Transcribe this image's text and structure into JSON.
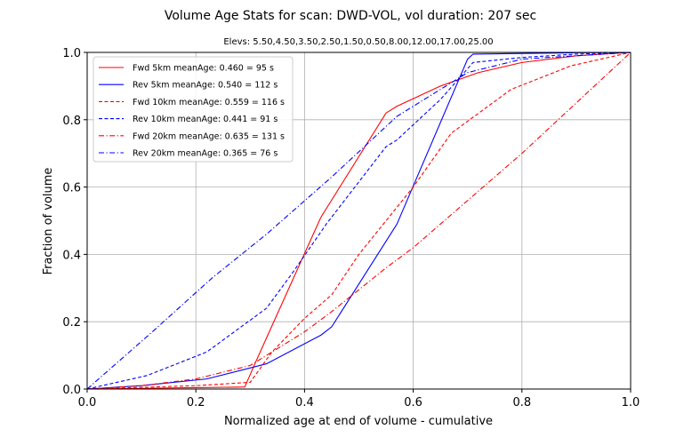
{
  "chart_data": {
    "type": "line",
    "title": "Volume Age Stats for scan: DWD-VOL, vol duration: 207 sec",
    "subtitle": "Elevs: 5.50,4.50,3.50,2.50,1.50,0.50,8.00,12.00,17.00,25.00",
    "xlabel": "Normalized age at end of volume - cumulative",
    "ylabel": "Fraction of volume",
    "xlim": [
      0.0,
      1.0
    ],
    "ylim": [
      0.0,
      1.0
    ],
    "xticks": [
      "0.0",
      "0.2",
      "0.4",
      "0.6",
      "0.8",
      "1.0"
    ],
    "yticks": [
      "0.0",
      "0.2",
      "0.4",
      "0.6",
      "0.8",
      "1.0"
    ],
    "grid": true,
    "legend_position": "top-left",
    "series": [
      {
        "name": "Fwd  5km meanAge: 0.460 = 95 s",
        "color": "#ff0000",
        "dash": "solid",
        "x": [
          0.0,
          0.1,
          0.2,
          0.29,
          0.31,
          0.43,
          0.55,
          0.57,
          0.65,
          0.72,
          0.8,
          0.9,
          1.0
        ],
        "y": [
          0.0,
          0.002,
          0.004,
          0.006,
          0.08,
          0.51,
          0.82,
          0.84,
          0.9,
          0.94,
          0.97,
          0.99,
          1.0
        ]
      },
      {
        "name": "Rev  5km meanAge: 0.540 = 112 s",
        "color": "#0000ff",
        "dash": "solid",
        "x": [
          0.0,
          0.1,
          0.22,
          0.33,
          0.43,
          0.45,
          0.57,
          0.7,
          0.71,
          0.8,
          0.9,
          1.0
        ],
        "y": [
          0.0,
          0.01,
          0.03,
          0.075,
          0.16,
          0.185,
          0.49,
          0.98,
          0.995,
          0.997,
          0.999,
          1.0
        ]
      },
      {
        "name": "Fwd 10km meanAge: 0.559 = 116 s",
        "color": "#ff0000",
        "dash": "dashed",
        "x": [
          0.0,
          0.1,
          0.2,
          0.3,
          0.34,
          0.4,
          0.45,
          0.5,
          0.6,
          0.67,
          0.78,
          0.89,
          1.0
        ],
        "y": [
          0.0,
          0.005,
          0.01,
          0.02,
          0.11,
          0.21,
          0.28,
          0.4,
          0.6,
          0.76,
          0.89,
          0.96,
          1.0
        ]
      },
      {
        "name": "Rev 10km meanAge: 0.441 = 91 s",
        "color": "#0000ff",
        "dash": "dashed",
        "x": [
          0.0,
          0.11,
          0.22,
          0.33,
          0.38,
          0.44,
          0.55,
          0.57,
          0.65,
          0.71,
          0.8,
          0.9,
          1.0
        ],
        "y": [
          0.0,
          0.04,
          0.11,
          0.24,
          0.35,
          0.49,
          0.72,
          0.74,
          0.86,
          0.97,
          0.985,
          0.995,
          1.0
        ]
      },
      {
        "name": "Fwd 20km meanAge: 0.635 = 131 s",
        "color": "#ff0000",
        "dash": "dashdot",
        "x": [
          0.0,
          0.1,
          0.2,
          0.3,
          0.4,
          0.45,
          0.55,
          0.6,
          0.7,
          0.8,
          0.9,
          1.0
        ],
        "y": [
          0.0,
          0.01,
          0.03,
          0.07,
          0.17,
          0.23,
          0.36,
          0.42,
          0.56,
          0.7,
          0.85,
          1.0
        ]
      },
      {
        "name": "Rev 20km meanAge: 0.365 = 76 s",
        "color": "#0000ff",
        "dash": "dashdot",
        "x": [
          0.0,
          0.12,
          0.23,
          0.33,
          0.45,
          0.57,
          0.7,
          0.8,
          1.0
        ],
        "y": [
          0.0,
          0.17,
          0.33,
          0.46,
          0.63,
          0.81,
          0.94,
          0.98,
          1.0
        ]
      }
    ]
  }
}
